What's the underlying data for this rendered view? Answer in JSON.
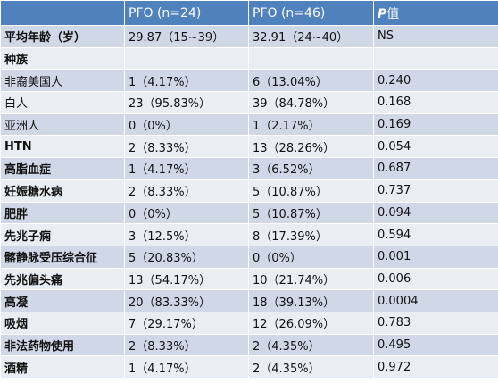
{
  "header": {
    "col1": "",
    "col2": "PFO (n=24)",
    "col3": "PFO (n=46)",
    "col4_italic": "P",
    "col4_rest": "值"
  },
  "rows": [
    {
      "label": "平均年龄（岁）",
      "bold": true,
      "pfo24": "29.87（15~39）",
      "pfo46": "32.91（24~40）",
      "p": "NS"
    },
    {
      "label": "种族",
      "bold": true,
      "pfo24": "",
      "pfo46": "",
      "p": ""
    },
    {
      "label": "非裔美国人",
      "bold": false,
      "pfo24": "1（4.17%）",
      "pfo46": "6（13.04%）",
      "p": "0.240"
    },
    {
      "label": " 白人",
      "bold": false,
      "pfo24": "23（95.83%）",
      "pfo46": "39（84.78%）",
      "p": "0.168"
    },
    {
      "label": "亚洲人",
      "bold": false,
      "pfo24": "0（0%）",
      "pfo46": "1（2.17%）",
      "p": "0.169"
    },
    {
      "label": "HTN",
      "bold": true,
      "pfo24": "2（8.33%）",
      "pfo46": "13（28.26%）",
      "p": "0.054"
    },
    {
      "label": "高脂血症",
      "bold": true,
      "pfo24": "1（4.17%）",
      "pfo46": "3（6.52%）",
      "p": "0.687"
    },
    {
      "label": "妊娠糖水病",
      "bold": true,
      "pfo24": "2（8.33%）",
      "pfo46": "5（10.87%）",
      "p": "0.737"
    },
    {
      "label": "肥胖",
      "bold": true,
      "pfo24": "0（0%）",
      "pfo46": "5（10.87%）",
      "p": "0.094"
    },
    {
      "label": "先兆子痫",
      "bold": true,
      "pfo24": "3（12.5%）",
      "pfo46": "8（17.39%）",
      "p": "0.594"
    },
    {
      "label": "髂静脉受压综合征",
      "bold": true,
      "pfo24": "5（20.83%）",
      "pfo46": "0（0%）",
      "p": "0.001"
    },
    {
      "label": "先兆偏头痛",
      "bold": true,
      "pfo24": "13（54.17%）",
      "pfo46": "10（21.74%）",
      "p": "0.006"
    },
    {
      "label": "高凝",
      "bold": true,
      "pfo24": "20（83.33%）",
      "pfo46": "18（39.13%）",
      "p": "0.0004"
    },
    {
      "label": "吸烟",
      "bold": true,
      "pfo24": "7（29.17%）",
      "pfo46": "12（26.09%）",
      "p": "0.783"
    },
    {
      "label": "非法药物使用",
      "bold": true,
      "pfo24": "2（8.33%）",
      "pfo46": "2（4.35%）",
      "p": "0.495"
    },
    {
      "label": "酒精",
      "bold": true,
      "pfo24": "1（4.17%）",
      "pfo46": "2（4.35%）",
      "p": "0.972"
    }
  ],
  "colors": {
    "header_bg": "#4f81bd",
    "row_odd_bg": "#d0d8e8",
    "row_even_bg": "#e9edf4",
    "header_text": "#ffffff"
  }
}
